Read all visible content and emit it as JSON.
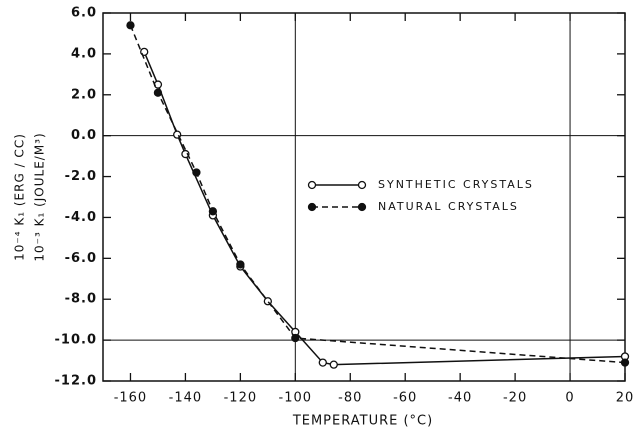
{
  "chart_data": {
    "type": "line",
    "x_label": "TEMPERATURE (°C)",
    "y_label_lines": [
      "10⁻⁴ K₁ (ERG / CC)",
      "10⁻³ K₁ (JOULE/M³)"
    ],
    "xlim": [
      -170,
      20
    ],
    "ylim": [
      -12,
      6
    ],
    "xticks": [
      -160,
      -140,
      -120,
      -100,
      -80,
      -60,
      -40,
      -20,
      0,
      20
    ],
    "yticks": [
      {
        "value": 6,
        "label": "6.0"
      },
      {
        "value": 4,
        "label": "4.0"
      },
      {
        "value": 2,
        "label": "2.0"
      },
      {
        "value": 0,
        "label": "0.0"
      },
      {
        "value": -2,
        "label": "-2.0"
      },
      {
        "value": -4,
        "label": "-4.0"
      },
      {
        "value": -6,
        "label": "-6.0"
      },
      {
        "value": -8,
        "label": "-8.0"
      },
      {
        "value": -10,
        "label": "-10.0"
      },
      {
        "value": -12,
        "label": "-12.0"
      }
    ],
    "reference_lines": {
      "x": [
        -100,
        0
      ],
      "y": [
        0,
        -10
      ]
    },
    "legend": "right",
    "series": [
      {
        "name": "SYNTHETIC CRYSTALS",
        "color": "#111111",
        "marker": "open",
        "dash": false,
        "x": [
          -155,
          -150,
          -143,
          -140,
          -130,
          -120,
          -110,
          -100,
          -90,
          -86,
          20
        ],
        "values": [
          4.1,
          2.5,
          0.05,
          -0.9,
          -3.9,
          -6.4,
          -8.1,
          -9.6,
          -11.1,
          -11.2,
          -10.8
        ]
      },
      {
        "name": "NATURAL CRYSTALS",
        "color": "#111111",
        "marker": "filled",
        "dash": true,
        "x": [
          -160,
          -150,
          -136,
          -130,
          -120,
          -100,
          20
        ],
        "values": [
          5.4,
          2.1,
          -1.8,
          -3.7,
          -6.3,
          -9.9,
          -11.1
        ]
      }
    ]
  }
}
